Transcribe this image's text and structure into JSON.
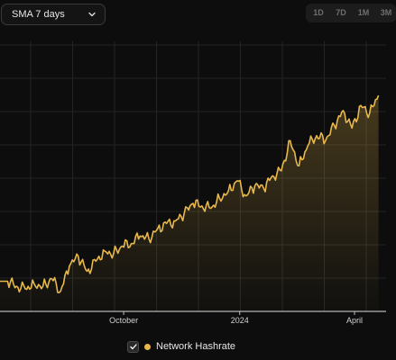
{
  "controls": {
    "smoothing_label": "SMA 7 days",
    "ranges": [
      "1D",
      "7D",
      "1M",
      "3M"
    ]
  },
  "colors": {
    "series": "#e8b84c",
    "grid": "#242424",
    "background": "#0d0d0d"
  },
  "chart_data": {
    "type": "area",
    "title": "",
    "xlabel": "",
    "ylabel": "",
    "x_tick_labels": [
      "October",
      "2024",
      "April"
    ],
    "grid": true,
    "legend": "bottom-center",
    "series": [
      {
        "name": "Network Hashrate",
        "x": [
          "2023-07-01",
          "2023-07-08",
          "2023-07-15",
          "2023-07-22",
          "2023-07-29",
          "2023-08-05",
          "2023-08-12",
          "2023-08-19",
          "2023-08-26",
          "2023-09-02",
          "2023-09-09",
          "2023-09-16",
          "2023-09-23",
          "2023-09-30",
          "2023-10-07",
          "2023-10-14",
          "2023-10-21",
          "2023-10-28",
          "2023-11-04",
          "2023-11-11",
          "2023-11-18",
          "2023-11-25",
          "2023-12-02",
          "2023-12-09",
          "2023-12-16",
          "2023-12-23",
          "2023-12-30",
          "2024-01-06",
          "2024-01-13",
          "2024-01-20",
          "2024-01-27",
          "2024-02-03",
          "2024-02-10",
          "2024-02-17",
          "2024-02-24",
          "2024-03-02",
          "2024-03-09",
          "2024-03-16",
          "2024-03-23",
          "2024-03-30",
          "2024-04-06",
          "2024-04-13",
          "2024-04-20"
        ],
        "values": [
          0.12,
          0.1,
          0.09,
          0.11,
          0.1,
          0.13,
          0.08,
          0.18,
          0.22,
          0.16,
          0.2,
          0.24,
          0.23,
          0.26,
          0.27,
          0.3,
          0.29,
          0.33,
          0.35,
          0.36,
          0.39,
          0.43,
          0.42,
          0.41,
          0.45,
          0.48,
          0.52,
          0.46,
          0.5,
          0.49,
          0.54,
          0.56,
          0.68,
          0.58,
          0.66,
          0.7,
          0.68,
          0.74,
          0.8,
          0.73,
          0.82,
          0.79,
          0.86
        ]
      }
    ]
  },
  "legend": {
    "label": "Network Hashrate"
  }
}
